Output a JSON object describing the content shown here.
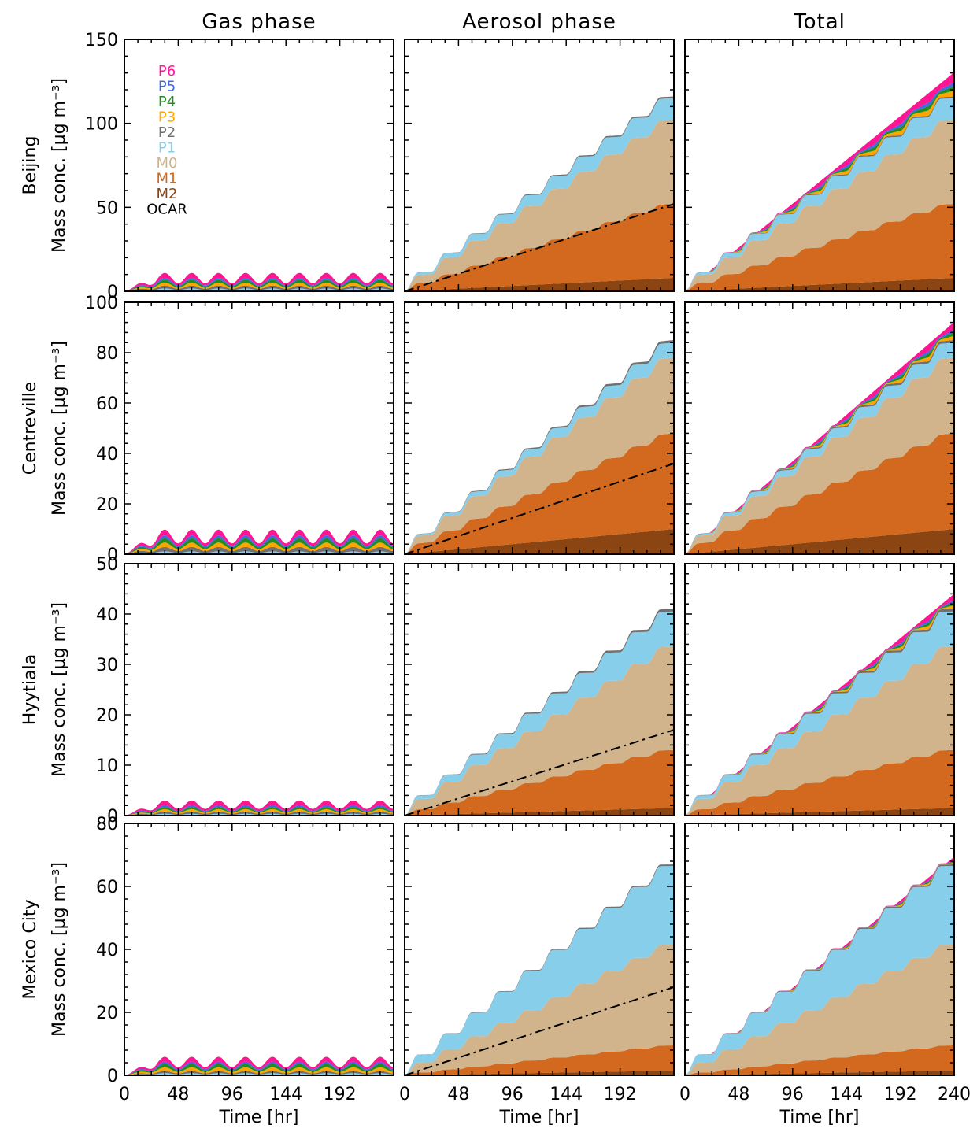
{
  "colors": {
    "OCAR": "#000000",
    "M2": "#8B4513",
    "M1": "#D2691E",
    "M0": "#D2B48C",
    "P1": "#87CEEB",
    "P2": "#707070",
    "P3": "#FFA500",
    "P4": "#228B22",
    "P5": "#4169E1",
    "P6": "#FF1493"
  },
  "chart_data": {
    "type": "area",
    "stacked": true,
    "columns": [
      "Gas phase",
      "Aerosol phase",
      "Total"
    ],
    "rows": [
      "Beijing",
      "Centreville",
      "Hyytiala",
      "Mexico City"
    ],
    "ylabel": "Mass conc. [μg m⁻³]",
    "xlabel": "Time [hr]",
    "xlim": [
      0,
      240
    ],
    "xticks_default": [
      "0",
      "48",
      "96",
      "144",
      "192"
    ],
    "xticks_last": [
      "0",
      "48",
      "96",
      "144",
      "192",
      "240"
    ],
    "legend": {
      "location": "top-left of Beijing gas-phase panel",
      "entries": [
        {
          "label": "P6",
          "key": "P6"
        },
        {
          "label": "P5",
          "key": "P5"
        },
        {
          "label": "P4",
          "key": "P4"
        },
        {
          "label": "P3",
          "key": "P3"
        },
        {
          "label": "P2",
          "key": "P2"
        },
        {
          "label": "P1",
          "key": "P1"
        },
        {
          "label": "M0",
          "key": "M0"
        },
        {
          "label": "M1",
          "key": "M1"
        },
        {
          "label": "M2",
          "key": "M2"
        },
        {
          "label": "OCAR",
          "key": "OCAR"
        }
      ]
    },
    "stack_order": [
      "M2",
      "M1",
      "M0",
      "P1",
      "P2",
      "P3",
      "P4",
      "P5",
      "P6"
    ],
    "sites": [
      {
        "name": "Beijing",
        "ylim": [
          0,
          150
        ],
        "yticks": [
          0,
          50,
          100,
          150
        ],
        "gas_total_peak": 9,
        "total_final": 128,
        "aerosol_final": {
          "M2": 8,
          "M1": 44,
          "M0": 50,
          "P1": 13,
          "P2": 1
        },
        "gas_final": {
          "P1": 1.5,
          "P2": 1.5,
          "P3": 1.5,
          "P4": 1.5,
          "P5": 1,
          "P6": 2.5
        },
        "ocar_line_final": 52
      },
      {
        "name": "Centreville",
        "ylim": [
          0,
          100
        ],
        "yticks": [
          0,
          20,
          40,
          60,
          80,
          100
        ],
        "gas_total_peak": 10,
        "total_final": 91,
        "aerosol_final": {
          "M2": 10,
          "M1": 38,
          "M0": 30,
          "P1": 6,
          "P2": 1
        },
        "gas_final": {
          "P1": 1,
          "P2": 1.5,
          "P3": 1.5,
          "P4": 1.5,
          "P5": 1,
          "P6": 2
        },
        "ocar_line_final": 36
      },
      {
        "name": "Hyytiala",
        "ylim": [
          0,
          50
        ],
        "yticks": [
          0,
          10,
          20,
          30,
          40,
          50
        ],
        "gas_total_peak": 3.5,
        "total_final": 43.5,
        "aerosol_final": {
          "M2": 1.5,
          "M1": 11.5,
          "M0": 20.5,
          "P1": 7,
          "P2": 0.5
        },
        "gas_final": {
          "P1": 0.3,
          "P2": 0.4,
          "P3": 0.4,
          "P4": 0.4,
          "P5": 0.3,
          "P6": 0.8
        },
        "ocar_line_final": 17
      },
      {
        "name": "Mexico City",
        "ylim": [
          0,
          80
        ],
        "yticks": [
          0,
          20,
          40,
          60,
          80
        ],
        "gas_total_peak": 7,
        "total_final": 69,
        "aerosol_final": {
          "M2": 1.5,
          "M1": 8,
          "M0": 32,
          "P1": 25,
          "P2": 0.5
        },
        "gas_final": {
          "P1": 0.6,
          "P2": 0.6,
          "P3": 1,
          "P4": 1,
          "P5": 0.6,
          "P6": 1.3
        },
        "ocar_line_final": 28
      }
    ]
  }
}
